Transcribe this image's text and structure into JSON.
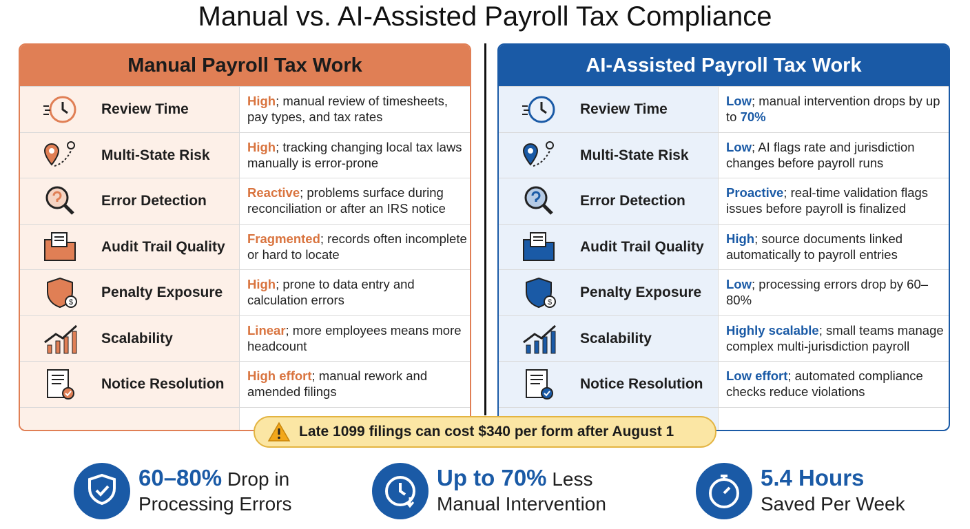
{
  "title": "Manual vs. AI-Assisted Payroll Tax Compliance",
  "panels": [
    {
      "title": "Manual Payroll Tax Work",
      "color": "#e07f55",
      "title_color": "#1b1b1b",
      "tint": "#fdf0e8",
      "accent": "#d9743f",
      "rows": [
        {
          "label": "Review Time",
          "description": [
            {
              "text": "High",
              "style": "accent"
            },
            {
              "text": "; manual review of timesheets, pay types, and tax rates",
              "style": "plain"
            }
          ]
        },
        {
          "label": "Multi-State Risk",
          "description": [
            {
              "text": "High",
              "style": "accent"
            },
            {
              "text": "; tracking changing local tax laws manually is error-prone",
              "style": "plain"
            }
          ]
        },
        {
          "label": "Error Detection",
          "description": [
            {
              "text": "Reactive",
              "style": "accent"
            },
            {
              "text": "; problems surface during reconciliation or after an IRS notice",
              "style": "plain"
            }
          ]
        },
        {
          "label": "Audit Trail Quality",
          "description": [
            {
              "text": "Fragmented",
              "style": "accent"
            },
            {
              "text": "; records often incomplete or hard to locate",
              "style": "plain"
            }
          ]
        },
        {
          "label": "Penalty Exposure",
          "description": [
            {
              "text": "High",
              "style": "accent"
            },
            {
              "text": "; prone to data entry and calculation errors",
              "style": "plain"
            }
          ]
        },
        {
          "label": "Scalability",
          "description": [
            {
              "text": "Linear",
              "style": "accent"
            },
            {
              "text": "; more employees means more headcount",
              "style": "plain"
            }
          ]
        },
        {
          "label": "Notice Resolution",
          "description": [
            {
              "text": "High effort",
              "style": "accent"
            },
            {
              "text": "; manual rework and amended filings",
              "style": "plain"
            }
          ]
        }
      ]
    },
    {
      "title": "AI-Assisted Payroll Tax Work",
      "color": "#1a5aa6",
      "title_color": "#ffffff",
      "tint": "#eaf1fa",
      "accent": "#1a5aa6",
      "rows": [
        {
          "label": "Review Time",
          "description": [
            {
              "text": "Low",
              "style": "accent"
            },
            {
              "text": "; manual intervention drops by up to ",
              "style": "plain"
            },
            {
              "text": "70%",
              "style": "accent"
            }
          ]
        },
        {
          "label": "Multi-State Risk",
          "description": [
            {
              "text": "Low",
              "style": "accent"
            },
            {
              "text": "; AI flags rate and jurisdiction changes before payroll runs",
              "style": "plain"
            }
          ]
        },
        {
          "label": "Error Detection",
          "description": [
            {
              "text": "Proactive",
              "style": "accent"
            },
            {
              "text": "; real-time validation flags issues before payroll is finalized",
              "style": "plain"
            }
          ]
        },
        {
          "label": "Audit Trail Quality",
          "description": [
            {
              "text": "High",
              "style": "accent"
            },
            {
              "text": "; source documents linked automatically to payroll entries",
              "style": "plain"
            }
          ]
        },
        {
          "label": "Penalty Exposure",
          "description": [
            {
              "text": "Low",
              "style": "accent"
            },
            {
              "text": "; processing errors drop by 60–80%",
              "style": "plain"
            }
          ]
        },
        {
          "label": "Scalability",
          "description": [
            {
              "text": "Highly scalable",
              "style": "accent"
            },
            {
              "text": "; small teams manage complex multi-jurisdiction payroll",
              "style": "plain"
            }
          ]
        },
        {
          "label": "Notice Resolution",
          "description": [
            {
              "text": "Low effort",
              "style": "accent"
            },
            {
              "text": "; automated compliance checks reduce violations",
              "style": "plain"
            }
          ]
        }
      ]
    }
  ],
  "alert": "Late 1099 filings can cost $340 per form after August 1",
  "stats": [
    {
      "headline": "60–80%",
      "headline_rest": "Drop in",
      "subline": "Processing Errors"
    },
    {
      "headline": "Up to 70%",
      "headline_rest": "Less",
      "subline": "Manual Intervention"
    },
    {
      "headline": "5.4 Hours",
      "subline": "Saved Per Week"
    }
  ]
}
